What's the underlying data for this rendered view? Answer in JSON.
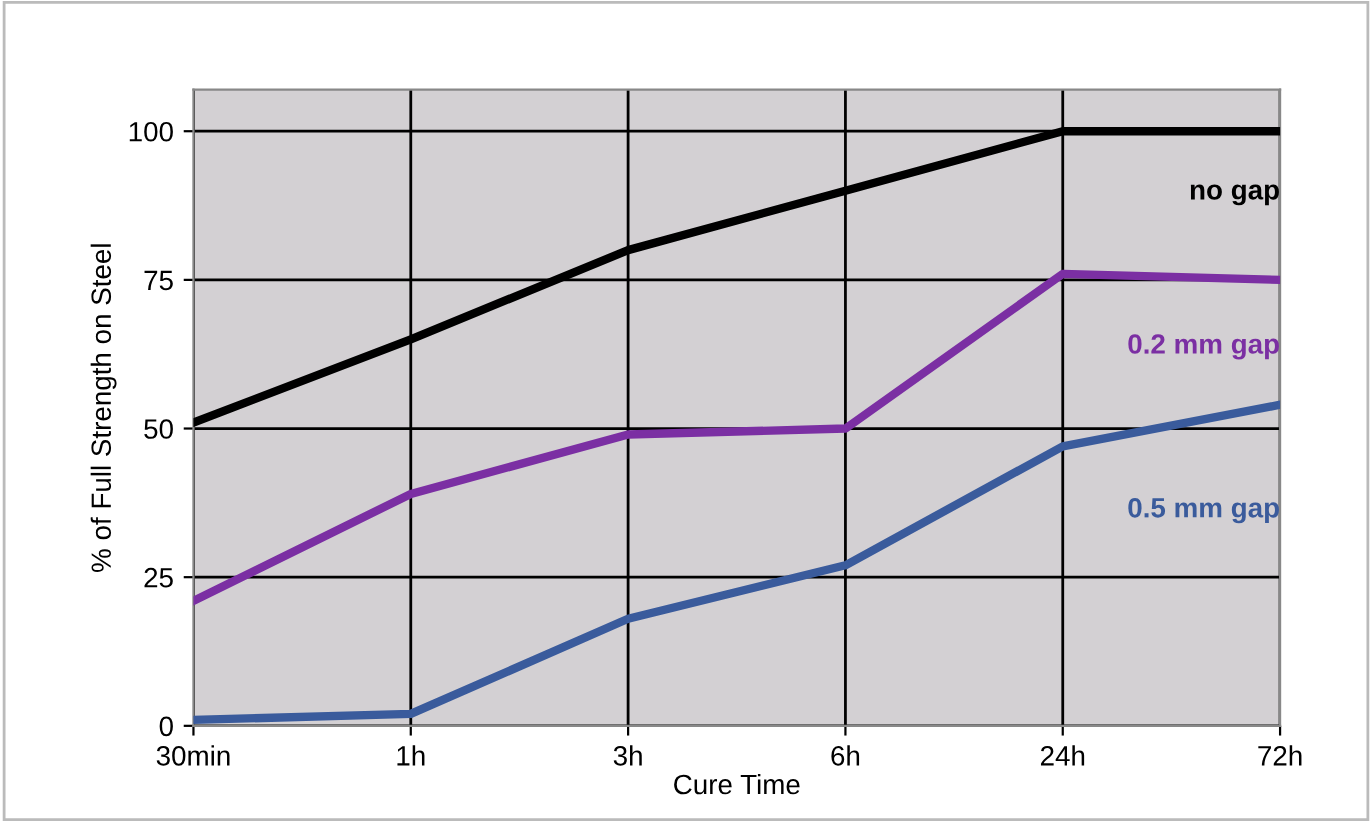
{
  "chart_data": {
    "type": "line",
    "xlabel": "Cure Time",
    "ylabel": "% of Full Strength on Steel",
    "categories": [
      "30min",
      "1h",
      "3h",
      "6h",
      "24h",
      "72h"
    ],
    "series": [
      {
        "name": "no gap",
        "color": "#000000",
        "values": [
          51,
          65,
          80,
          90,
          100,
          100
        ]
      },
      {
        "name": "0.2 mm gap",
        "color": "#7b2fa3",
        "values": [
          21,
          39,
          49,
          50,
          76,
          75
        ]
      },
      {
        "name": "0.5 mm gap",
        "color": "#3a5b9c",
        "values": [
          1,
          2,
          18,
          27,
          47,
          54
        ]
      }
    ],
    "ylim": [
      0,
      107
    ],
    "yticks": [
      0,
      25,
      50,
      75,
      100
    ],
    "grid": true,
    "legend": false,
    "marker": "none",
    "line_style": "solid"
  }
}
